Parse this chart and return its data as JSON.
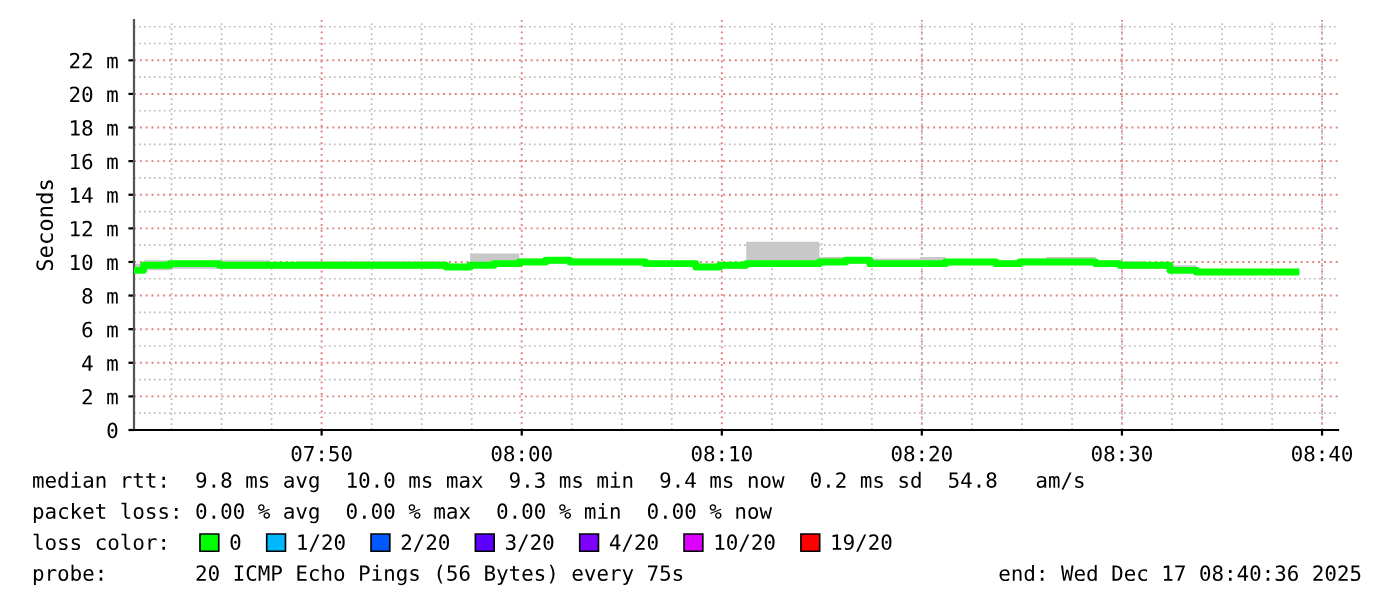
{
  "chart_data": {
    "type": "step",
    "ylabel": "Seconds",
    "x": [
      7.677,
      7.685,
      7.707,
      7.748,
      7.79,
      7.812,
      7.937,
      7.957,
      7.977,
      7.998,
      8.02,
      8.04,
      8.062,
      8.103,
      8.145,
      8.165,
      8.187,
      8.248,
      8.27,
      8.29,
      8.332,
      8.353,
      8.395,
      8.415,
      8.437,
      8.478,
      8.498,
      8.52,
      8.54,
      8.562,
      8.645
    ],
    "series": [
      {
        "name": "0",
        "color": "#00ff00",
        "values": [
          9.5,
          9.8,
          9.9,
          9.8,
          9.8,
          9.8,
          9.7,
          9.8,
          9.9,
          10.0,
          10.1,
          10.0,
          10.0,
          9.9,
          9.7,
          9.8,
          9.9,
          10.0,
          10.1,
          9.9,
          9.9,
          10.0,
          9.9,
          10.0,
          10.0,
          9.9,
          9.8,
          9.8,
          9.5,
          9.4,
          9.4
        ],
        "lower": [
          9.4,
          9.5,
          9.6,
          9.6,
          9.6,
          9.6,
          9.55,
          9.7,
          9.75,
          9.85,
          9.9,
          9.85,
          9.8,
          9.7,
          9.55,
          9.6,
          9.7,
          9.85,
          9.9,
          9.75,
          9.7,
          9.8,
          9.75,
          9.85,
          9.8,
          9.7,
          9.6,
          9.6,
          9.4,
          9.25,
          9.25
        ],
        "upper": [
          9.9,
          10.1,
          10.0,
          10.1,
          10.0,
          10.05,
          9.9,
          10.5,
          10.5,
          10.2,
          10.2,
          10.2,
          10.2,
          10.0,
          9.9,
          10.0,
          11.2,
          10.3,
          10.3,
          10.2,
          10.3,
          10.1,
          10.1,
          10.2,
          10.3,
          10.1,
          10.05,
          9.9,
          9.8,
          9.5,
          9.5
        ]
      },
      {
        "name": "1/20",
        "color": "#00b8ff",
        "values": [
          null,
          null,
          null,
          null,
          null,
          null,
          null,
          null,
          null,
          null,
          null,
          null,
          null,
          null,
          null,
          null,
          null,
          null,
          null,
          null,
          null,
          null,
          null,
          null,
          null,
          null,
          null,
          null,
          null,
          null,
          null
        ]
      },
      {
        "name": "2/20",
        "color": "#0059ff",
        "values": [
          null,
          null,
          null,
          null,
          null,
          null,
          null,
          null,
          null,
          null,
          null,
          null,
          null,
          null,
          null,
          null,
          null,
          null,
          null,
          null,
          null,
          null,
          null,
          null,
          null,
          null,
          null,
          null,
          null,
          null,
          null
        ]
      },
      {
        "name": "3/20",
        "color": "#5e00ff",
        "values": [
          null,
          null,
          null,
          null,
          null,
          null,
          null,
          null,
          null,
          null,
          null,
          null,
          null,
          null,
          null,
          null,
          null,
          null,
          null,
          null,
          null,
          null,
          null,
          null,
          null,
          null,
          null,
          null,
          null,
          null,
          null
        ]
      },
      {
        "name": "4/20",
        "color": "#7e00ff",
        "values": [
          null,
          null,
          null,
          null,
          null,
          null,
          null,
          null,
          null,
          null,
          null,
          null,
          null,
          null,
          null,
          null,
          null,
          null,
          null,
          null,
          null,
          null,
          null,
          null,
          null,
          null,
          null,
          null,
          null,
          null,
          null
        ]
      },
      {
        "name": "10/20",
        "color": "#dd00ff",
        "values": [
          null,
          null,
          null,
          null,
          null,
          null,
          null,
          null,
          null,
          null,
          null,
          null,
          null,
          null,
          null,
          null,
          null,
          null,
          null,
          null,
          null,
          null,
          null,
          null,
          null,
          null,
          null,
          null,
          null,
          null,
          null
        ]
      },
      {
        "name": "19/20",
        "color": "#ff0000",
        "values": [
          null,
          null,
          null,
          null,
          null,
          null,
          null,
          null,
          null,
          null,
          null,
          null,
          null,
          null,
          null,
          null,
          null,
          null,
          null,
          null,
          null,
          null,
          null,
          null,
          null,
          null,
          null,
          null,
          null,
          null,
          null
        ]
      }
    ],
    "xlim": [
      7.677,
      8.68
    ],
    "xticks": [
      {
        "value": 7.8333,
        "label": "07:50"
      },
      {
        "value": 8.0,
        "label": "08:00"
      },
      {
        "value": 8.1667,
        "label": "08:10"
      },
      {
        "value": 8.3333,
        "label": "08:20"
      },
      {
        "value": 8.5,
        "label": "08:30"
      },
      {
        "value": 8.6667,
        "label": "08:40"
      }
    ],
    "ylim": [
      0,
      24.4
    ],
    "yticks": [
      0,
      {
        "value": 2,
        "label": "2 m"
      },
      {
        "value": 4,
        "label": "4 m"
      },
      {
        "value": 6,
        "label": "6 m"
      },
      {
        "value": 8,
        "label": "8 m"
      },
      {
        "value": 10,
        "label": "10 m"
      },
      {
        "value": 12,
        "label": "12 m"
      },
      {
        "value": 14,
        "label": "14 m"
      },
      {
        "value": 16,
        "label": "16 m"
      },
      {
        "value": 18,
        "label": "18 m"
      },
      {
        "value": 20,
        "label": "20 m"
      },
      {
        "value": 22,
        "label": "22 m"
      }
    ],
    "grid": true,
    "legend": "bottom",
    "legend_title": "loss color:",
    "annotations": [
      "median rtt:  9.8 ms avg  10.0 ms max  9.3 ms min  9.4 ms now  0.2 ms sd  54.8   am/s",
      "packet loss: 0.00 % avg  0.00 % max  0.00 % min  0.00 % now",
      "probe:       20 ICMP Echo Pings (56 Bytes) every 75s",
      "end: Wed Dec 17 08:40:36 2025"
    ]
  }
}
